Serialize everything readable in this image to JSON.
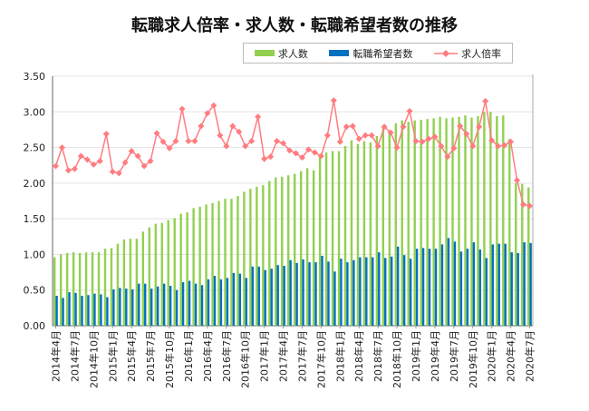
{
  "chart_data": {
    "type": "bar",
    "title": "転職求人倍率・求人数・転職希望者数の推移",
    "xlabel": "",
    "ylabel": "",
    "ylim": [
      0,
      3.5
    ],
    "yticks": [
      "0.00",
      "0.50",
      "1.00",
      "1.50",
      "2.00",
      "2.50",
      "3.00",
      "3.50"
    ],
    "grid": true,
    "legend_position": "top-center",
    "start": {
      "year": 2014,
      "month": 4
    },
    "month_count": 76,
    "xtick_labels": [
      "2014年4月",
      "2014年7月",
      "2014年10月",
      "2015年1月",
      "2015年4月",
      "2015年7月",
      "2015年10月",
      "2016年1月",
      "2016年4月",
      "2016年7月",
      "2016年10月",
      "2017年1月",
      "2017年4月",
      "2017年7月",
      "2017年10月",
      "2018年1月",
      "2018年4月",
      "2018年7月",
      "2018年10月",
      "2019年1月",
      "2019年4月",
      "2019年7月",
      "2019年10月",
      "2020年1月",
      "2020年4月",
      "2020年7月"
    ],
    "series": [
      {
        "name": "求人数",
        "type": "bar",
        "color": "#92d050",
        "values": [
          0.96,
          1.0,
          1.02,
          1.03,
          1.02,
          1.03,
          1.03,
          1.03,
          1.08,
          1.09,
          1.15,
          1.21,
          1.22,
          1.22,
          1.32,
          1.38,
          1.43,
          1.44,
          1.48,
          1.51,
          1.57,
          1.59,
          1.65,
          1.67,
          1.7,
          1.72,
          1.75,
          1.78,
          1.78,
          1.82,
          1.88,
          1.92,
          1.95,
          1.97,
          2.03,
          2.08,
          2.09,
          2.11,
          2.13,
          2.17,
          2.21,
          2.18,
          2.39,
          2.43,
          2.45,
          2.45,
          2.52,
          2.6,
          2.55,
          2.59,
          2.57,
          2.66,
          2.78,
          2.74,
          2.84,
          2.88,
          2.86,
          2.88,
          2.89,
          2.9,
          2.91,
          2.93,
          2.91,
          2.92,
          2.93,
          2.95,
          2.92,
          2.94,
          3.0,
          3.0,
          2.94,
          2.95,
          2.62,
          2.0,
          1.99,
          1.94
        ]
      },
      {
        "name": "転職希望者数",
        "type": "bar",
        "color": "#0070c0",
        "values": [
          0.42,
          0.39,
          0.47,
          0.46,
          0.42,
          0.43,
          0.45,
          0.44,
          0.4,
          0.51,
          0.53,
          0.52,
          0.51,
          0.59,
          0.59,
          0.52,
          0.55,
          0.59,
          0.56,
          0.5,
          0.61,
          0.63,
          0.59,
          0.57,
          0.65,
          0.7,
          0.65,
          0.67,
          0.74,
          0.73,
          0.67,
          0.83,
          0.83,
          0.78,
          0.8,
          0.85,
          0.84,
          0.92,
          0.88,
          0.93,
          0.89,
          0.89,
          0.98,
          0.9,
          0.76,
          0.94,
          0.89,
          0.92,
          0.96,
          0.96,
          0.96,
          1.03,
          0.95,
          0.97,
          1.11,
          0.99,
          0.94,
          1.08,
          1.09,
          1.08,
          1.08,
          1.14,
          1.23,
          1.18,
          1.04,
          1.08,
          1.17,
          1.07,
          0.95,
          1.14,
          1.15,
          1.15,
          1.03,
          1.02,
          1.17,
          1.16
        ]
      },
      {
        "name": "求人倍率",
        "type": "line",
        "color": "#ff7c80",
        "values": [
          2.24,
          2.5,
          2.18,
          2.2,
          2.38,
          2.33,
          2.26,
          2.31,
          2.69,
          2.16,
          2.14,
          2.29,
          2.45,
          2.38,
          2.24,
          2.31,
          2.7,
          2.58,
          2.49,
          2.59,
          3.04,
          2.59,
          2.59,
          2.8,
          2.98,
          3.09,
          2.67,
          2.52,
          2.8,
          2.72,
          2.52,
          2.59,
          2.93,
          2.34,
          2.37,
          2.59,
          2.56,
          2.46,
          2.42,
          2.36,
          2.47,
          2.43,
          2.38,
          2.67,
          3.16,
          2.58,
          2.79,
          2.8,
          2.62,
          2.67,
          2.67,
          2.52,
          2.79,
          2.71,
          2.5,
          2.79,
          3.01,
          2.59,
          2.58,
          2.62,
          2.65,
          2.52,
          2.37,
          2.49,
          2.8,
          2.69,
          2.52,
          2.79,
          3.15,
          2.6,
          2.52,
          2.53,
          2.58,
          2.04,
          1.7,
          1.68
        ]
      }
    ]
  }
}
